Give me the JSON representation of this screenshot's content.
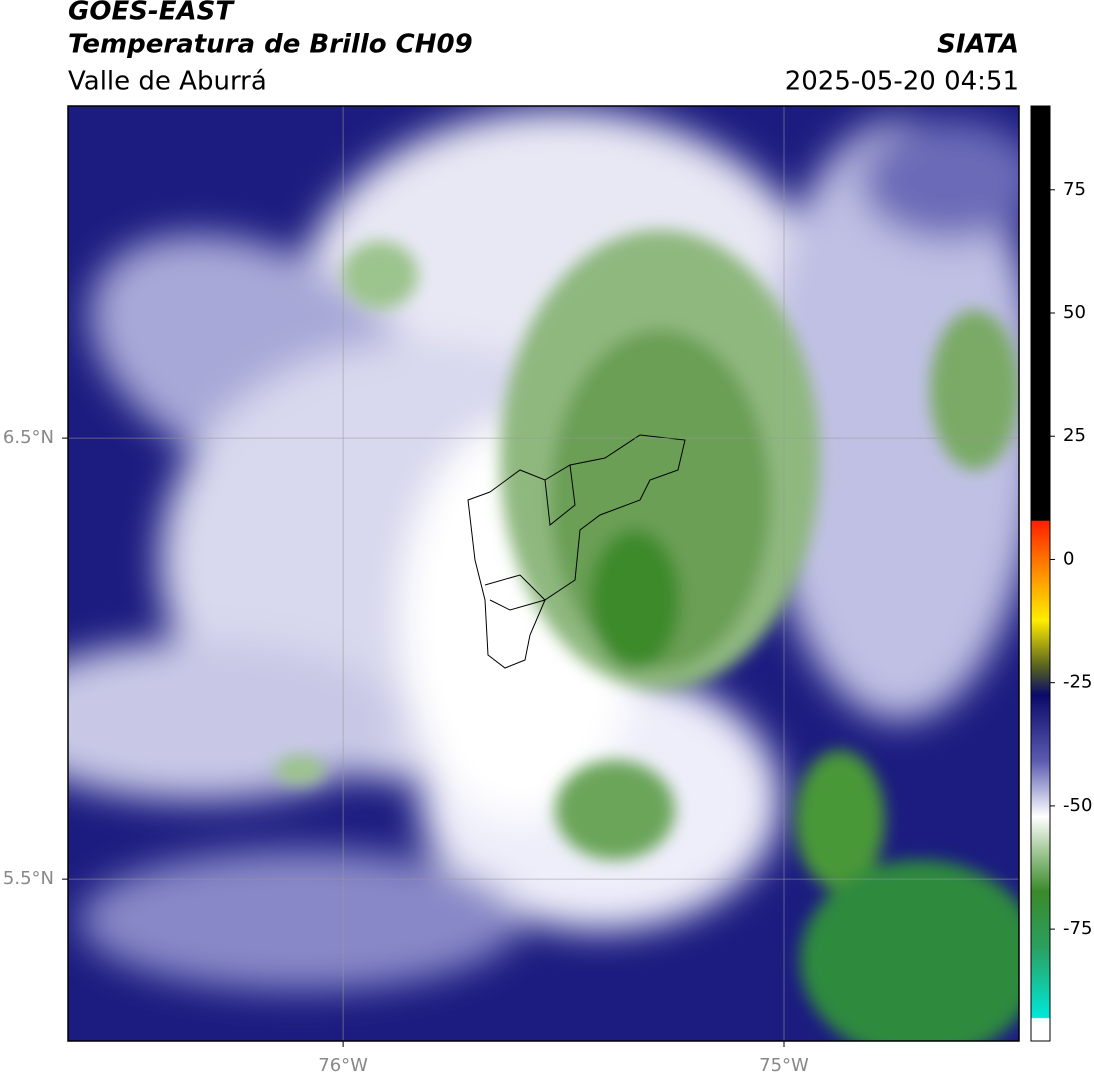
{
  "header": {
    "title": "GOES-EAST",
    "subtitle": "Temperatura de Brillo CH09",
    "region": "Valle de Aburrá",
    "source": "SIATA",
    "datetime": "2025-05-20 04:51"
  },
  "map": {
    "xlim": [
      -76.624,
      -74.467
    ],
    "ylim": [
      5.133,
      7.253
    ],
    "xticks": [
      {
        "value": -76,
        "label": "76°W"
      },
      {
        "value": -75,
        "label": "75°W"
      }
    ],
    "yticks": [
      {
        "value": 6.5,
        "label": "6.5°N"
      },
      {
        "value": 5.5,
        "label": "5.5°N"
      }
    ],
    "grid": true
  },
  "colorbar": {
    "lim": [
      -97.7,
      92
    ],
    "ticks": [
      75,
      50,
      25,
      0,
      -25,
      -50,
      -75
    ]
  }
}
